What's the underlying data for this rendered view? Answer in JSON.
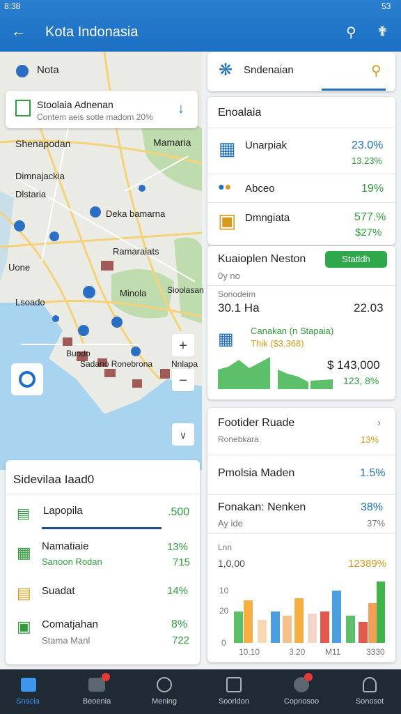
{
  "status": {
    "time": "8:38",
    "battery": "53"
  },
  "appbar": {
    "title": "Kota Indonasia"
  },
  "map": {
    "search": "Nota",
    "route_card": {
      "title": "Stoolaia Adnenan",
      "subtitle": "Contem aeis sotle madom 20%"
    },
    "places": [
      "Shenapodan",
      "Mamaria",
      "Dimnajackia",
      "Dlstaria",
      "Deka bamarna",
      "Ramaraiats",
      "Uone",
      "Lsoado",
      "Minola",
      "Sioolasan",
      "Buodo",
      "Sadano Ronebrona",
      "Nnlapa"
    ]
  },
  "left_panel": {
    "title": "Sidevilaa Iaad0",
    "rows": [
      {
        "name": "Lapopila",
        "value": ".500"
      },
      {
        "name": "Namatiaie",
        "sub": "Sanoon Rodan",
        "value": "13%",
        "subvalue": "715"
      },
      {
        "name": "Suadat",
        "value": "14%"
      },
      {
        "name": "Comatjahan",
        "sub": "Stama Manl",
        "value": "8%",
        "subvalue": "722"
      }
    ]
  },
  "right_search": "Sndenaian",
  "card1": {
    "title": "Enoalaia",
    "rows": [
      {
        "name": "Unarpiak",
        "value": "23.0%",
        "sub": "13.23%"
      },
      {
        "name": "Abceo",
        "value": "19%"
      },
      {
        "name": "Dmngiata",
        "value": "577.%",
        "sub": "$27%"
      }
    ]
  },
  "card2": {
    "title": "Kuaioplen Neston",
    "button": "Statldh",
    "sub": "0y no",
    "label": "Sonodeim",
    "left_value": "30.1 Ha",
    "right_value": "22.03",
    "trend_title": "Canakan (n Stapaia)",
    "trend_sub": "Thik ($3,368)",
    "total": "$ 143,000",
    "change": "123, 8%"
  },
  "card3": {
    "title": "Footider Ruade",
    "title_sub": "Ronebkara",
    "title_value": "13%",
    "row1": {
      "name": "Pmolsia Maden",
      "value": "1.5%"
    },
    "row2": {
      "name": "Fonakan: Nenken",
      "value": "38%",
      "sub": "Ay ide",
      "subvalue": "37%"
    },
    "chart_label": "Lnn",
    "chart_sub": "1,0,00",
    "chart_value": "12389%",
    "axis": [
      "10",
      "20",
      "0"
    ],
    "xlabels": [
      "10.10",
      "3.20",
      "M11",
      "3330"
    ]
  },
  "nav": [
    "Snacia",
    "Beoenia",
    "Mening",
    "Sooridon",
    "Copnosoo",
    "Sonosot"
  ]
}
